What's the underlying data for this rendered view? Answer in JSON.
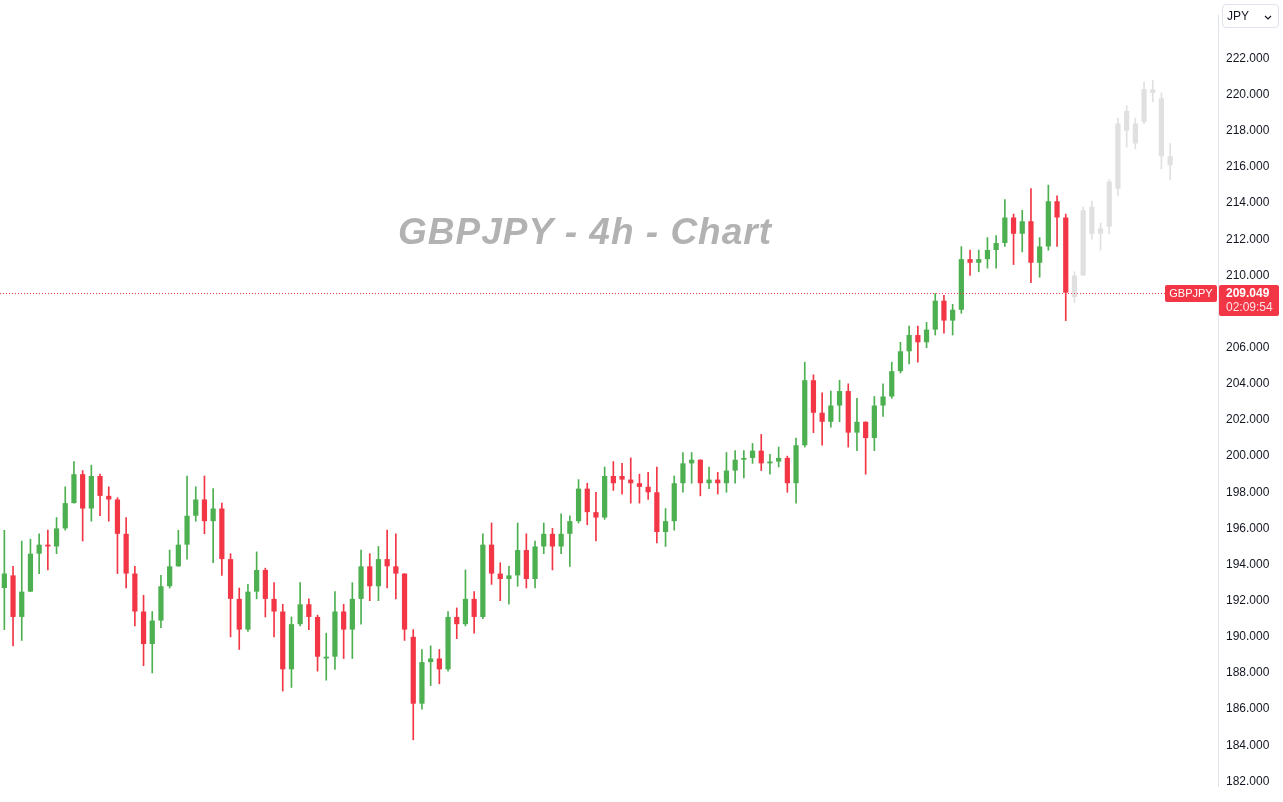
{
  "chart_data": {
    "type": "candlestick",
    "title": "GBPJPY - 4h - Chart",
    "categories": [
      null,
      null,
      null,
      null,
      null,
      null,
      null,
      null,
      null,
      null,
      null,
      null,
      null,
      null,
      null,
      null,
      null,
      null,
      null,
      null,
      null,
      null,
      null,
      null,
      null,
      null,
      null,
      null,
      null,
      null,
      null,
      null,
      null,
      null,
      null,
      null,
      null,
      null,
      null,
      null,
      null,
      null,
      null,
      null,
      null,
      null,
      null,
      null,
      null,
      null,
      null,
      null,
      null,
      null,
      null,
      null,
      null,
      null,
      null,
      null,
      null,
      null,
      null,
      null,
      null,
      null,
      null,
      null,
      null,
      null,
      null,
      null,
      null,
      null,
      null,
      null,
      null,
      null,
      null,
      null,
      null,
      null,
      null,
      null,
      null,
      null,
      null,
      null,
      null,
      null,
      null,
      null,
      null,
      null,
      null,
      null,
      null,
      null,
      null,
      null,
      null,
      null,
      null,
      null,
      null,
      null,
      null,
      null,
      null,
      null,
      null,
      null,
      null,
      null,
      null,
      null,
      null,
      null,
      null,
      null,
      null,
      null,
      null,
      null,
      null,
      null,
      null,
      null,
      null,
      null,
      null,
      null,
      null,
      null,
      null,
      null,
      null,
      null,
      null,
      null
    ],
    "series": [
      {
        "ohlc": [
          [
            192.7,
            195.9,
            190.4,
            193.5
          ],
          [
            193.4,
            193.9,
            189.5,
            191.1
          ],
          [
            191.1,
            195.3,
            189.8,
            192.5
          ],
          [
            192.5,
            195.4,
            192.5,
            194.6
          ],
          [
            194.6,
            195.7,
            193.5,
            195.1
          ],
          [
            195.1,
            195.9,
            193.7,
            195.0
          ],
          [
            195.0,
            196.6,
            194.6,
            196.0
          ],
          [
            196.0,
            198.3,
            195.9,
            197.4
          ],
          [
            197.4,
            199.7,
            197.4,
            199.0
          ],
          [
            199.0,
            199.2,
            195.3,
            197.1
          ],
          [
            197.1,
            199.5,
            196.4,
            198.9
          ],
          [
            198.9,
            199.0,
            196.7,
            197.8
          ],
          [
            197.8,
            198.3,
            196.4,
            197.6
          ],
          [
            197.6,
            197.7,
            193.5,
            195.7
          ],
          [
            195.7,
            196.6,
            192.7,
            193.5
          ],
          [
            193.5,
            193.9,
            190.6,
            191.4
          ],
          [
            191.4,
            192.3,
            188.4,
            189.6
          ],
          [
            189.6,
            191.4,
            188.0,
            190.9
          ],
          [
            190.9,
            193.4,
            190.5,
            192.8
          ],
          [
            192.8,
            194.8,
            192.7,
            193.9
          ],
          [
            193.9,
            195.9,
            193.9,
            195.1
          ],
          [
            195.1,
            198.9,
            194.3,
            196.7
          ],
          [
            196.7,
            198.3,
            196.4,
            197.6
          ],
          [
            197.6,
            198.9,
            195.7,
            196.4
          ],
          [
            196.4,
            198.2,
            194.1,
            197.1
          ],
          [
            197.1,
            197.4,
            193.4,
            194.3
          ],
          [
            194.3,
            194.6,
            190.0,
            192.1
          ],
          [
            192.1,
            192.7,
            189.3,
            190.4
          ],
          [
            190.4,
            192.9,
            190.3,
            192.5
          ],
          [
            192.5,
            194.7,
            192.1,
            193.7
          ],
          [
            193.7,
            193.8,
            191.1,
            192.1
          ],
          [
            192.1,
            193.0,
            190.0,
            191.4
          ],
          [
            191.4,
            191.8,
            187.0,
            188.2
          ],
          [
            188.2,
            191.1,
            187.2,
            190.7
          ],
          [
            190.7,
            193.0,
            190.6,
            191.8
          ],
          [
            191.8,
            192.1,
            190.4,
            191.1
          ],
          [
            191.1,
            191.2,
            188.1,
            188.9
          ],
          [
            188.8,
            190.2,
            187.6,
            188.9
          ],
          [
            188.9,
            192.5,
            188.2,
            191.4
          ],
          [
            191.4,
            191.8,
            188.8,
            190.4
          ],
          [
            190.4,
            193.0,
            188.8,
            192.1
          ],
          [
            192.1,
            194.8,
            190.7,
            193.9
          ],
          [
            193.9,
            194.6,
            192.0,
            192.8
          ],
          [
            192.8,
            195.0,
            192.0,
            194.3
          ],
          [
            194.3,
            195.9,
            192.7,
            193.9
          ],
          [
            193.9,
            195.7,
            192.1,
            193.5
          ],
          [
            193.5,
            193.5,
            189.8,
            190.4
          ],
          [
            190.0,
            190.4,
            184.3,
            186.3
          ],
          [
            186.3,
            189.3,
            186.0,
            188.6
          ],
          [
            188.6,
            189.5,
            187.3,
            188.8
          ],
          [
            188.8,
            189.3,
            187.4,
            188.2
          ],
          [
            188.2,
            191.4,
            188.1,
            191.1
          ],
          [
            191.1,
            191.6,
            189.9,
            190.7
          ],
          [
            190.7,
            193.7,
            190.6,
            192.1
          ],
          [
            192.1,
            192.5,
            190.2,
            191.1
          ],
          [
            191.1,
            195.7,
            191.0,
            195.1
          ],
          [
            195.1,
            196.3,
            192.9,
            193.5
          ],
          [
            193.5,
            194.1,
            192.0,
            193.2
          ],
          [
            193.2,
            193.9,
            191.8,
            193.4
          ],
          [
            193.4,
            196.3,
            192.8,
            194.8
          ],
          [
            194.8,
            195.7,
            192.7,
            193.2
          ],
          [
            193.2,
            195.3,
            192.7,
            195.0
          ],
          [
            195.0,
            196.3,
            194.6,
            195.7
          ],
          [
            195.7,
            196.0,
            193.7,
            195.0
          ],
          [
            195.0,
            196.8,
            194.6,
            195.7
          ],
          [
            195.7,
            196.7,
            193.9,
            196.4
          ],
          [
            196.4,
            198.7,
            196.3,
            198.2
          ],
          [
            198.2,
            198.5,
            196.2,
            196.9
          ],
          [
            196.9,
            198.0,
            195.3,
            196.6
          ],
          [
            196.6,
            199.4,
            196.5,
            198.9
          ],
          [
            198.9,
            199.7,
            198.1,
            198.5
          ],
          [
            198.9,
            199.6,
            197.9,
            198.7
          ],
          [
            198.7,
            199.9,
            197.4,
            198.5
          ],
          [
            198.5,
            199.0,
            197.4,
            198.3
          ],
          [
            198.3,
            199.1,
            197.6,
            198.0
          ],
          [
            198.0,
            199.4,
            195.2,
            195.8
          ],
          [
            195.8,
            197.1,
            195.0,
            196.4
          ],
          [
            196.4,
            198.9,
            195.9,
            198.5
          ],
          [
            198.5,
            200.2,
            198.0,
            199.6
          ],
          [
            199.6,
            200.2,
            198.5,
            199.8
          ],
          [
            199.8,
            199.8,
            197.8,
            198.5
          ],
          [
            198.5,
            199.4,
            198.2,
            198.7
          ],
          [
            198.7,
            199.1,
            197.9,
            198.5
          ],
          [
            198.5,
            200.2,
            198.0,
            199.2
          ],
          [
            199.2,
            200.3,
            198.5,
            199.8
          ],
          [
            199.8,
            200.3,
            198.8,
            199.9
          ],
          [
            199.9,
            200.7,
            199.6,
            200.3
          ],
          [
            200.3,
            201.2,
            199.2,
            199.6
          ],
          [
            199.6,
            200.1,
            199.0,
            199.7
          ],
          [
            199.7,
            200.5,
            199.4,
            199.9
          ],
          [
            199.9,
            200.0,
            198.0,
            198.5
          ],
          [
            198.5,
            201.0,
            197.4,
            200.6
          ],
          [
            200.6,
            205.2,
            200.5,
            204.2
          ],
          [
            204.2,
            204.5,
            201.3,
            202.4
          ],
          [
            202.4,
            203.5,
            200.6,
            201.9
          ],
          [
            201.9,
            203.6,
            201.6,
            202.8
          ],
          [
            202.8,
            204.2,
            201.9,
            203.6
          ],
          [
            203.6,
            204.0,
            200.5,
            201.3
          ],
          [
            201.3,
            203.2,
            200.3,
            201.9
          ],
          [
            201.9,
            201.9,
            199.0,
            201.0
          ],
          [
            201.0,
            203.3,
            200.3,
            202.8
          ],
          [
            202.8,
            204.0,
            202.2,
            203.3
          ],
          [
            203.3,
            205.2,
            203.2,
            204.7
          ],
          [
            204.7,
            206.3,
            204.6,
            205.8
          ],
          [
            205.8,
            207.2,
            205.1,
            206.7
          ],
          [
            206.7,
            207.2,
            205.2,
            206.3
          ],
          [
            206.3,
            207.4,
            206.0,
            207.0
          ],
          [
            207.0,
            209.0,
            206.7,
            208.6
          ],
          [
            208.6,
            208.9,
            206.8,
            207.5
          ],
          [
            207.5,
            208.4,
            206.7,
            208.1
          ],
          [
            208.1,
            211.6,
            207.9,
            210.9
          ],
          [
            210.9,
            211.4,
            210.0,
            210.7
          ],
          [
            210.7,
            211.4,
            210.2,
            210.9
          ],
          [
            210.9,
            212.1,
            210.4,
            211.4
          ],
          [
            211.4,
            212.2,
            210.4,
            211.8
          ],
          [
            211.8,
            214.2,
            211.6,
            213.2
          ],
          [
            213.2,
            213.4,
            210.6,
            212.3
          ],
          [
            212.3,
            213.6,
            211.3,
            213.0
          ],
          [
            213.0,
            214.8,
            209.6,
            210.7
          ],
          [
            210.7,
            212.1,
            209.9,
            211.6
          ],
          [
            211.6,
            215.0,
            211.4,
            214.1
          ],
          [
            214.1,
            214.4,
            211.6,
            213.2
          ],
          [
            213.2,
            213.4,
            207.5,
            209.049
          ],
          null,
          null,
          null,
          null,
          null,
          null,
          null,
          null,
          null,
          null,
          null,
          null,
          null,
          null,
          null,
          null,
          null
        ],
        "colors": [
          "#4caf50",
          "#f23645",
          "#4caf50",
          "#4caf50",
          "#4caf50",
          "#f23645",
          "#4caf50",
          "#4caf50",
          "#4caf50",
          "#f23645",
          "#4caf50",
          "#f23645",
          "#f23645",
          "#f23645",
          "#f23645",
          "#f23645",
          "#f23645",
          "#4caf50",
          "#4caf50",
          "#4caf50",
          "#4caf50",
          "#4caf50",
          "#4caf50",
          "#f23645",
          "#4caf50",
          "#f23645",
          "#f23645",
          "#f23645",
          "#4caf50",
          "#4caf50",
          "#f23645",
          "#f23645",
          "#f23645",
          "#4caf50",
          "#4caf50",
          "#f23645",
          "#f23645",
          "#4caf50",
          "#4caf50",
          "#f23645",
          "#4caf50",
          "#4caf50",
          "#f23645",
          "#4caf50",
          "#f23645",
          "#f23645",
          "#f23645",
          "#f23645",
          "#4caf50",
          "#4caf50",
          "#f23645",
          "#4caf50",
          "#f23645",
          "#4caf50",
          "#f23645",
          "#4caf50",
          "#f23645",
          "#f23645",
          "#4caf50",
          "#4caf50",
          "#f23645",
          "#4caf50",
          "#4caf50",
          "#f23645",
          "#4caf50",
          "#4caf50",
          "#4caf50",
          "#f23645",
          "#f23645",
          "#4caf50",
          "#f23645",
          "#f23645",
          "#f23645",
          "#f23645",
          "#f23645",
          "#f23645",
          "#4caf50",
          "#4caf50",
          "#4caf50",
          "#4caf50",
          "#f23645",
          "#4caf50",
          "#f23645",
          "#4caf50",
          "#4caf50",
          "#4caf50",
          "#4caf50",
          "#f23645",
          "#4caf50",
          "#4caf50",
          "#f23645",
          "#4caf50",
          "#4caf50",
          "#f23645",
          "#f23645",
          "#4caf50",
          "#4caf50",
          "#f23645",
          "#4caf50",
          "#f23645",
          "#4caf50",
          "#4caf50",
          "#4caf50",
          "#4caf50",
          "#4caf50",
          "#f23645",
          "#4caf50",
          "#4caf50",
          "#f23645",
          "#4caf50",
          "#4caf50",
          "#f23645",
          "#4caf50",
          "#4caf50",
          "#4caf50",
          "#4caf50",
          "#f23645",
          "#4caf50",
          "#f23645",
          "#4caf50",
          "#4caf50",
          "#f23645",
          "#f23645",
          null,
          null,
          null,
          null,
          null,
          null,
          null,
          null,
          null,
          null,
          null,
          null,
          null,
          null,
          null,
          null,
          null
        ]
      },
      {
        "color": "#e0e0e0",
        "ohlc": [
          null,
          null,
          null,
          null,
          null,
          null,
          null,
          null,
          null,
          null,
          null,
          null,
          null,
          null,
          null,
          null,
          null,
          null,
          null,
          null,
          null,
          null,
          null,
          null,
          null,
          null,
          null,
          null,
          null,
          null,
          null,
          null,
          null,
          null,
          null,
          null,
          null,
          null,
          null,
          null,
          null,
          null,
          null,
          null,
          null,
          null,
          null,
          null,
          null,
          null,
          null,
          null,
          null,
          null,
          null,
          null,
          null,
          null,
          null,
          null,
          null,
          null,
          null,
          null,
          null,
          null,
          null,
          null,
          null,
          null,
          null,
          null,
          null,
          null,
          null,
          null,
          null,
          null,
          null,
          null,
          null,
          null,
          null,
          null,
          null,
          null,
          null,
          null,
          null,
          null,
          null,
          null,
          null,
          null,
          null,
          null,
          null,
          null,
          null,
          null,
          null,
          null,
          null,
          null,
          null,
          null,
          null,
          null,
          null,
          null,
          null,
          null,
          null,
          null,
          null,
          null,
          null,
          null,
          null,
          null,
          null,
          null,
          null,
          [
            208.8,
            210.2,
            208.5,
            210.0
          ],
          [
            210.0,
            213.8,
            210.0,
            213.6
          ],
          [
            212.3,
            214.1,
            212.0,
            213.8
          ],
          [
            212.3,
            212.9,
            211.4,
            212.6
          ],
          [
            212.7,
            215.3,
            212.3,
            215.2
          ],
          [
            214.8,
            218.7,
            214.4,
            218.4
          ],
          [
            218.0,
            219.4,
            217.1,
            219.1
          ],
          [
            217.3,
            218.7,
            217.0,
            218.4
          ],
          [
            218.5,
            220.7,
            218.4,
            220.3
          ],
          [
            220.1,
            220.8,
            219.6,
            220.3
          ],
          [
            216.6,
            220.1,
            215.9,
            219.8
          ],
          [
            216.1,
            217.3,
            215.3,
            216.6
          ],
          null,
          null,
          null,
          null,
          null
        ]
      }
    ],
    "ylim": [
      181.7,
      224.4
    ],
    "yticks": [
      {
        "value": 182,
        "label": "182.000"
      },
      {
        "value": 184,
        "label": "184.000"
      },
      {
        "value": 186,
        "label": "186.000"
      },
      {
        "value": 188,
        "label": "188.000"
      },
      {
        "value": 190,
        "label": "190.000"
      },
      {
        "value": 192,
        "label": "192.000"
      },
      {
        "value": 194,
        "label": "194.000"
      },
      {
        "value": 196,
        "label": "196.000"
      },
      {
        "value": 198,
        "label": "198.000"
      },
      {
        "value": 200,
        "label": "200.000"
      },
      {
        "value": 202,
        "label": "202.000"
      },
      {
        "value": 204,
        "label": "204.000"
      },
      {
        "value": 206,
        "label": "206.000"
      },
      {
        "value": 210,
        "label": "210.000"
      },
      {
        "value": 212,
        "label": "212.000"
      },
      {
        "value": 214,
        "label": "214.000"
      },
      {
        "value": 216,
        "label": "216.000"
      },
      {
        "value": 218,
        "label": "218.000"
      },
      {
        "value": 220,
        "label": "220.000"
      },
      {
        "value": 222,
        "label": "222.000"
      }
    ],
    "ref_lines": [
      {
        "axis": "y",
        "value": 209.049,
        "label": "209.049",
        "color": "#f23645",
        "line_style": "dotted"
      }
    ],
    "annotations": [
      "JPY",
      {
        "text": "GBPJPY",
        "y": 209.049
      },
      "02:09:54"
    ]
  }
}
